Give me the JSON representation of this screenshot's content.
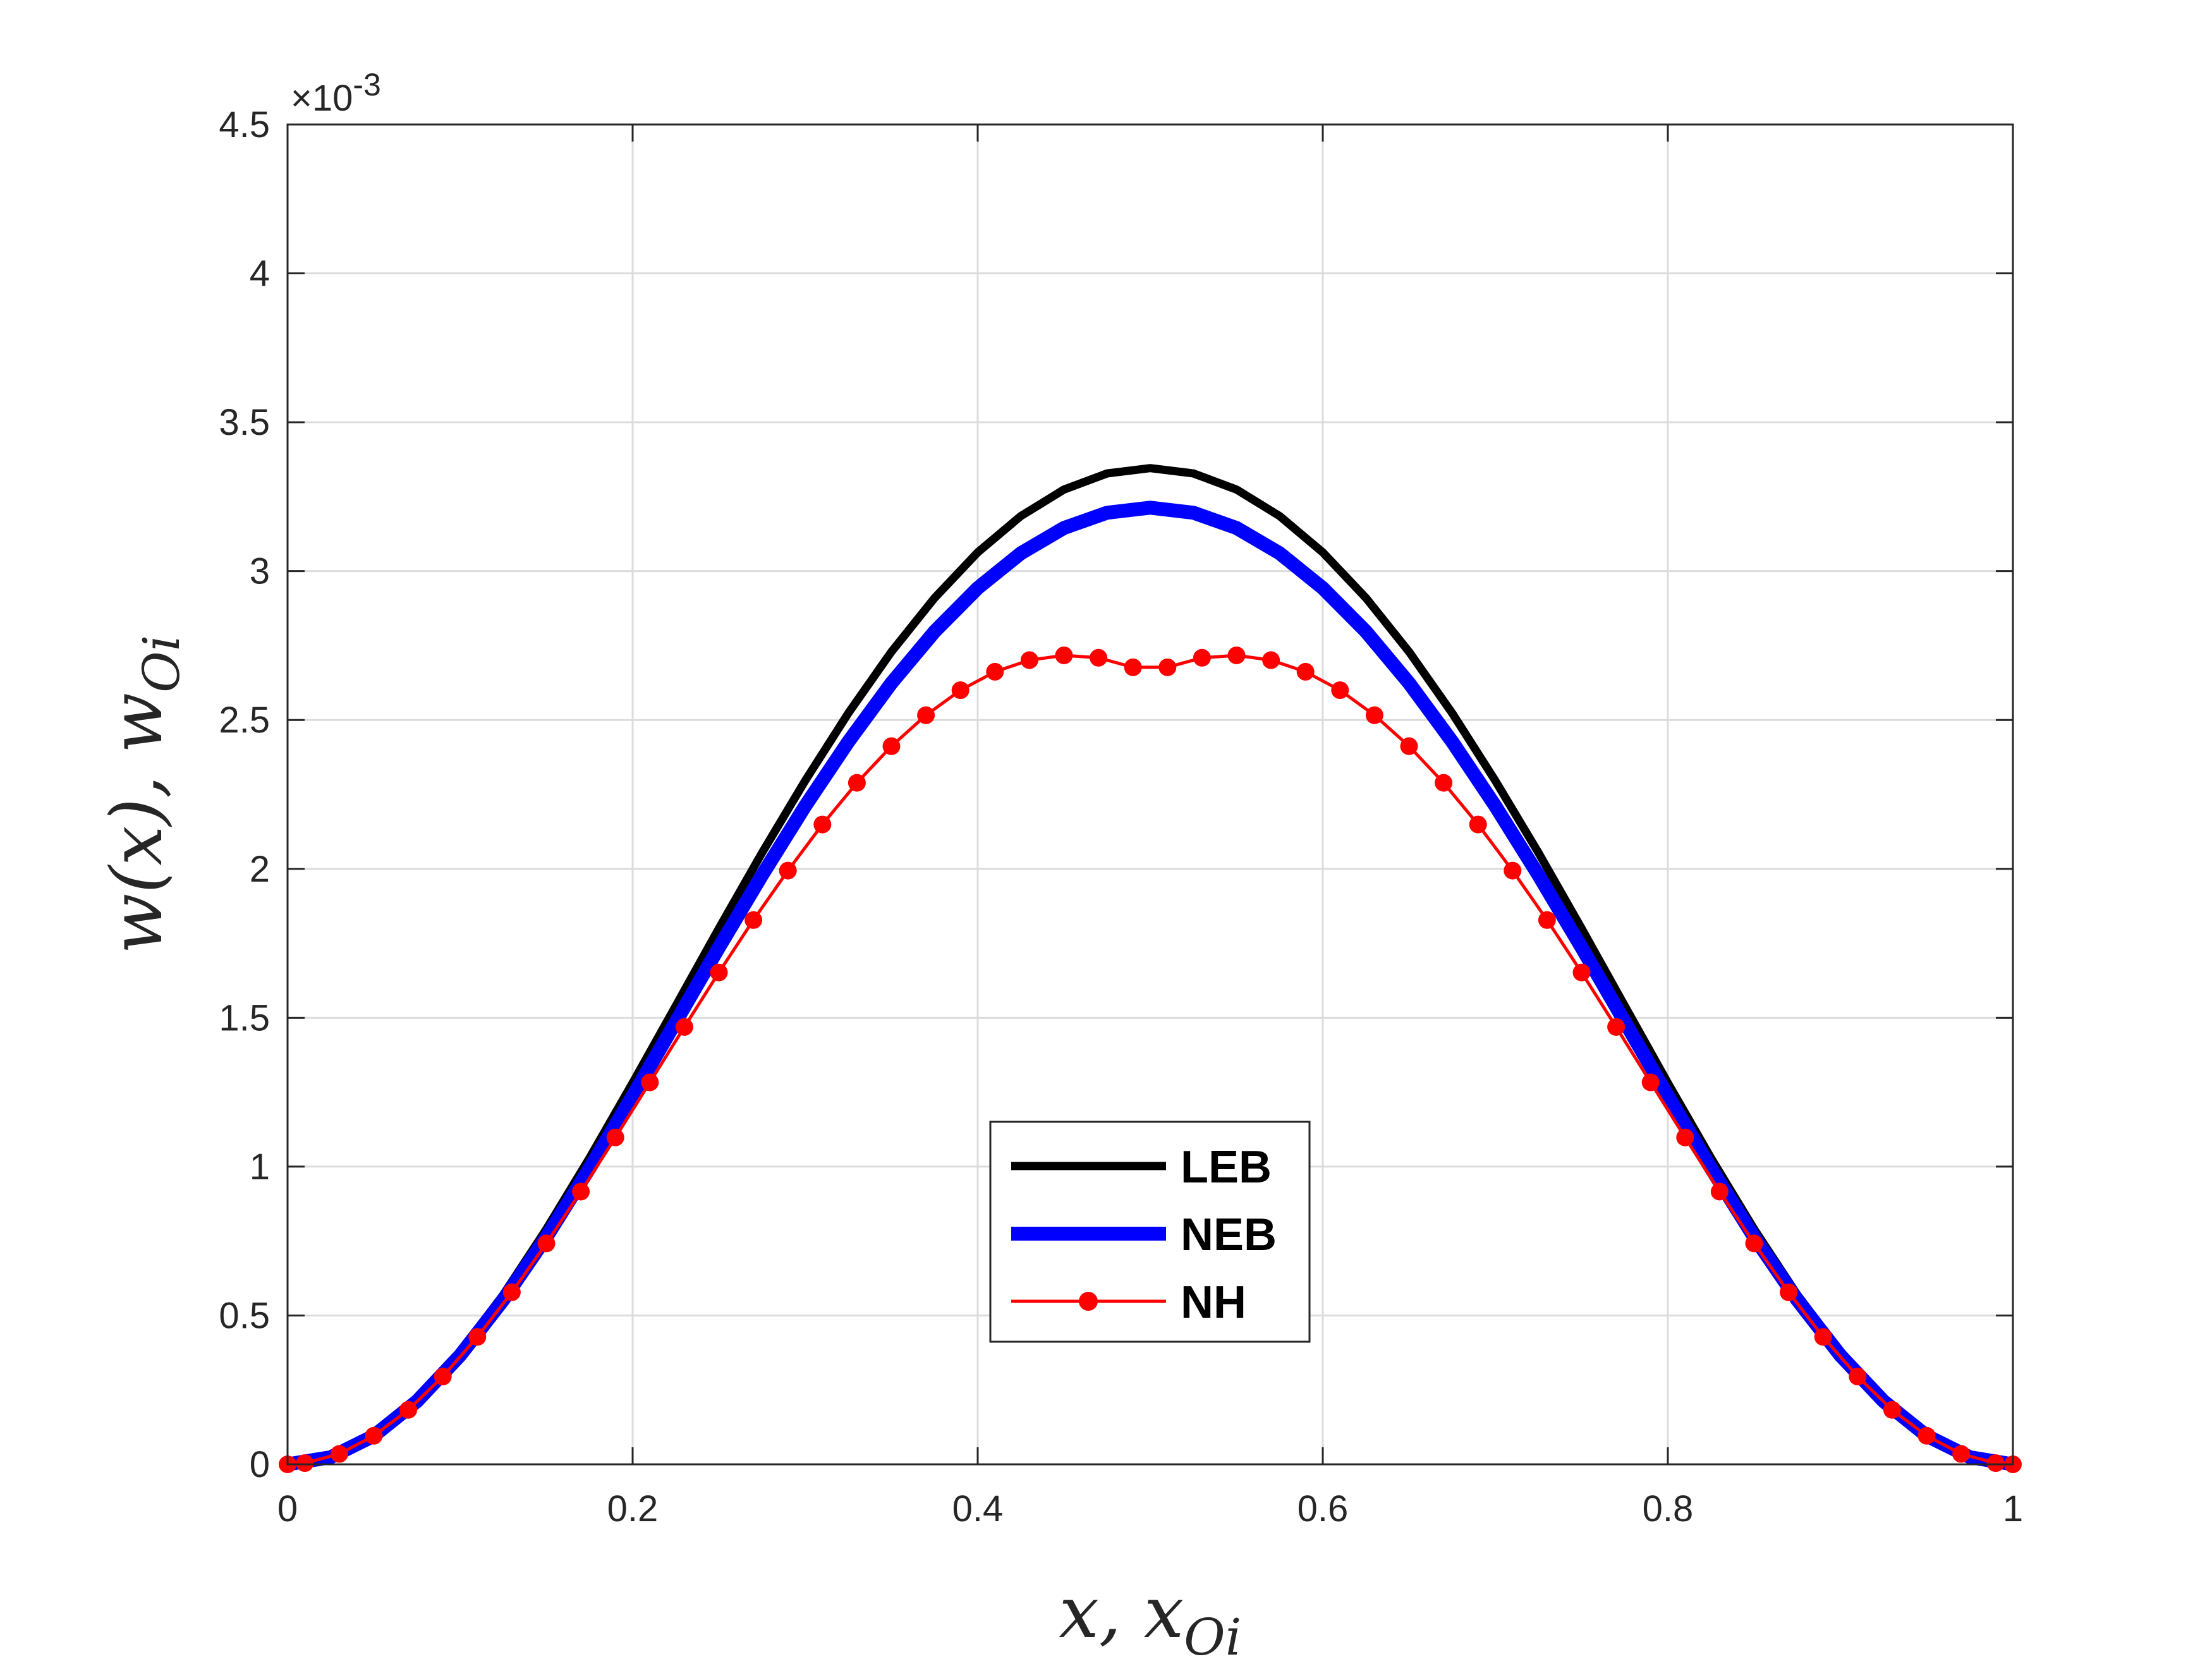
{
  "chart_data": {
    "type": "line",
    "xlabel": "x, x",
    "xlabel_sub": "Oi",
    "ylabel": "w(x), w",
    "ylabel_sub": "Oi",
    "xlim": [
      0,
      1
    ],
    "ylim": [
      0,
      0.0045
    ],
    "xticks": [
      0,
      0.2,
      0.4,
      0.6,
      0.8,
      1
    ],
    "xtick_labels": [
      "0",
      "0.2",
      "0.4",
      "0.6",
      "0.8",
      "1"
    ],
    "yticks": [
      0,
      0.0005,
      0.001,
      0.0015,
      0.002,
      0.0025,
      0.003,
      0.0035,
      0.004,
      0.0045
    ],
    "ytick_labels": [
      "0",
      "0.5",
      "1",
      "1.5",
      "2",
      "2.5",
      "3",
      "3.5",
      "4",
      "4.5"
    ],
    "y_exponent_label": "×10",
    "y_exponent_power": "-3",
    "grid": true,
    "legend_position": "bottom-center",
    "series": [
      {
        "name": "LEB",
        "color": "#000000",
        "marker": "none",
        "x": [
          0,
          0.025,
          0.05,
          0.075,
          0.1,
          0.125,
          0.15,
          0.175,
          0.2,
          0.225,
          0.25,
          0.275,
          0.3,
          0.325,
          0.35,
          0.375,
          0.4,
          0.425,
          0.45,
          0.475,
          0.5,
          0.525,
          0.55,
          0.575,
          0.6,
          0.625,
          0.65,
          0.675,
          0.7,
          0.725,
          0.75,
          0.775,
          0.8,
          0.825,
          0.85,
          0.875,
          0.9,
          0.925,
          0.95,
          0.975,
          1
        ],
        "y": [
          0,
          2.5e-05,
          9.9e-05,
          0.000219,
          0.000378,
          0.00057,
          0.00079,
          0.001029,
          0.001281,
          0.00154,
          0.0018,
          0.002054,
          0.002296,
          0.002523,
          0.002729,
          0.00291,
          0.003063,
          0.003185,
          0.003274,
          0.003328,
          0.003346,
          0.003328,
          0.003274,
          0.003185,
          0.003063,
          0.00291,
          0.002729,
          0.002523,
          0.002296,
          0.002054,
          0.0018,
          0.00154,
          0.001281,
          0.001029,
          0.00079,
          0.00057,
          0.000378,
          0.000219,
          9.9e-05,
          2.5e-05,
          0
        ]
      },
      {
        "name": "NEB",
        "color": "#0000ff",
        "marker": "none",
        "x": [
          0,
          0.025,
          0.05,
          0.075,
          0.1,
          0.125,
          0.15,
          0.175,
          0.2,
          0.225,
          0.25,
          0.275,
          0.3,
          0.325,
          0.35,
          0.375,
          0.4,
          0.425,
          0.45,
          0.475,
          0.5,
          0.525,
          0.55,
          0.575,
          0.6,
          0.625,
          0.65,
          0.675,
          0.7,
          0.725,
          0.75,
          0.775,
          0.8,
          0.825,
          0.85,
          0.875,
          0.9,
          0.925,
          0.95,
          0.975,
          1
        ],
        "y": [
          0,
          2.4e-05,
          9.6e-05,
          0.000212,
          0.000366,
          0.000552,
          0.000763,
          0.000994,
          0.001237,
          0.001486,
          0.001736,
          0.001979,
          0.002211,
          0.002427,
          0.002624,
          0.002797,
          0.002943,
          0.00306,
          0.003145,
          0.003196,
          0.003213,
          0.003196,
          0.003145,
          0.00306,
          0.002943,
          0.002797,
          0.002624,
          0.002427,
          0.002211,
          0.001979,
          0.001736,
          0.001486,
          0.001237,
          0.000994,
          0.000763,
          0.000552,
          0.000366,
          0.000212,
          9.6e-05,
          2.4e-05,
          0
        ]
      },
      {
        "name": "NH",
        "color": "#ff0000",
        "marker": "circle",
        "x": [
          0,
          0.01,
          0.03,
          0.05,
          0.07,
          0.09,
          0.11,
          0.13,
          0.15,
          0.17,
          0.19,
          0.21,
          0.23,
          0.25,
          0.27,
          0.29,
          0.31,
          0.33,
          0.35,
          0.37,
          0.39,
          0.41,
          0.43,
          0.45,
          0.47,
          0.49,
          0.51,
          0.53,
          0.55,
          0.57,
          0.59,
          0.61,
          0.63,
          0.65,
          0.67,
          0.69,
          0.71,
          0.73,
          0.75,
          0.77,
          0.79,
          0.81,
          0.83,
          0.85,
          0.87,
          0.89,
          0.91,
          0.93,
          0.95,
          0.97,
          0.99,
          1
        ],
        "y": [
          0,
          4e-06,
          3.5e-05,
          9.6e-05,
          0.000183,
          0.000295,
          0.000428,
          0.000578,
          0.000742,
          0.000916,
          0.001098,
          0.001283,
          0.001469,
          0.001652,
          0.001828,
          0.001994,
          0.002149,
          0.002289,
          0.002412,
          0.002516,
          0.0026,
          0.002662,
          0.002701,
          0.002717,
          0.002709,
          0.002677,
          0.002677,
          0.002709,
          0.002717,
          0.002701,
          0.002662,
          0.0026,
          0.002516,
          0.002412,
          0.002289,
          0.002149,
          0.001994,
          0.001828,
          0.001652,
          0.001469,
          0.001283,
          0.001098,
          0.000916,
          0.000742,
          0.000578,
          0.000428,
          0.000295,
          0.000183,
          9.6e-05,
          3.5e-05,
          4e-06,
          0
        ]
      }
    ]
  }
}
